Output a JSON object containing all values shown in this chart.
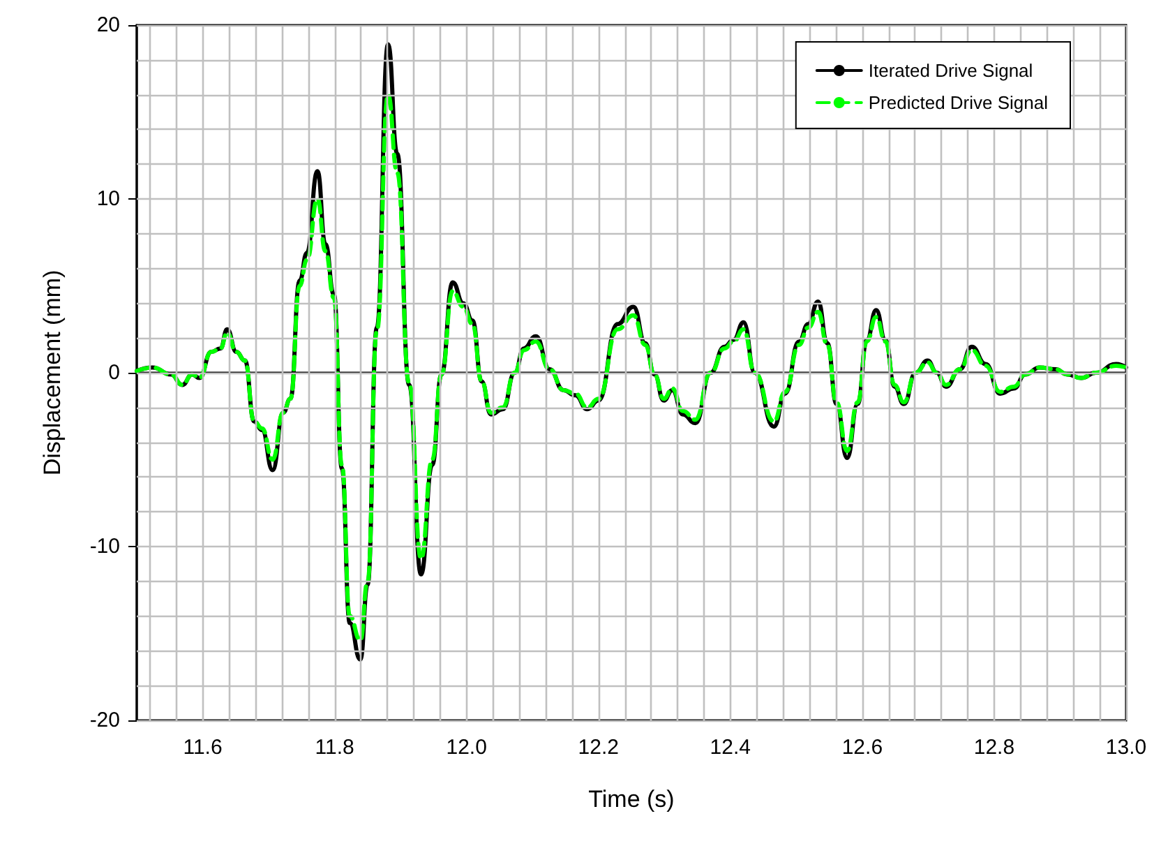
{
  "chart_data": {
    "type": "line",
    "xlabel": "Time (s)",
    "ylabel": "Displacement (mm)",
    "xlim": [
      11.5,
      13.0
    ],
    "ylim": [
      -20,
      20
    ],
    "xticks": [
      {
        "value": 11.52,
        "label": null
      },
      {
        "value": 11.56,
        "label": null
      },
      {
        "value": 11.6,
        "label": "11.6"
      },
      {
        "value": 11.64,
        "label": null
      },
      {
        "value": 11.68,
        "label": null
      },
      {
        "value": 11.72,
        "label": null
      },
      {
        "value": 11.76,
        "label": null
      },
      {
        "value": 11.8,
        "label": "11.8"
      },
      {
        "value": 11.84,
        "label": null
      },
      {
        "value": 11.88,
        "label": null
      },
      {
        "value": 11.92,
        "label": null
      },
      {
        "value": 11.96,
        "label": null
      },
      {
        "value": 12.0,
        "label": "12.0"
      },
      {
        "value": 12.04,
        "label": null
      },
      {
        "value": 12.08,
        "label": null
      },
      {
        "value": 12.12,
        "label": null
      },
      {
        "value": 12.16,
        "label": null
      },
      {
        "value": 12.2,
        "label": "12.2"
      },
      {
        "value": 12.24,
        "label": null
      },
      {
        "value": 12.28,
        "label": null
      },
      {
        "value": 12.32,
        "label": null
      },
      {
        "value": 12.36,
        "label": null
      },
      {
        "value": 12.4,
        "label": "12.4"
      },
      {
        "value": 12.44,
        "label": null
      },
      {
        "value": 12.48,
        "label": null
      },
      {
        "value": 12.52,
        "label": null
      },
      {
        "value": 12.56,
        "label": null
      },
      {
        "value": 12.6,
        "label": "12.6"
      },
      {
        "value": 12.64,
        "label": null
      },
      {
        "value": 12.68,
        "label": null
      },
      {
        "value": 12.72,
        "label": null
      },
      {
        "value": 12.76,
        "label": null
      },
      {
        "value": 12.8,
        "label": "12.8"
      },
      {
        "value": 12.84,
        "label": null
      },
      {
        "value": 12.88,
        "label": null
      },
      {
        "value": 12.92,
        "label": null
      },
      {
        "value": 12.96,
        "label": null
      },
      {
        "value": 13.0,
        "label": "13.0"
      }
    ],
    "yticks": [
      -20,
      {
        "value": -18,
        "label": null
      },
      {
        "value": -16,
        "label": null
      },
      {
        "value": -14,
        "label": null
      },
      {
        "value": -12,
        "label": null
      },
      -10,
      {
        "value": -8,
        "label": null
      },
      {
        "value": -6,
        "label": null
      },
      {
        "value": -4,
        "label": null
      },
      {
        "value": -2,
        "label": null
      },
      0,
      {
        "value": 2,
        "label": null
      },
      {
        "value": 4,
        "label": null
      },
      {
        "value": 6,
        "label": null
      },
      {
        "value": 8,
        "label": null
      },
      10,
      {
        "value": 12,
        "label": null
      },
      {
        "value": 14,
        "label": null
      },
      {
        "value": 16,
        "label": null
      },
      {
        "value": 18,
        "label": null
      },
      20
    ],
    "grid": true,
    "legend": "top right",
    "x": [
      11.5,
      11.524,
      11.552,
      11.569,
      11.584,
      11.595,
      11.613,
      11.627,
      11.637,
      11.651,
      11.664,
      11.678,
      11.69,
      11.706,
      11.722,
      11.733,
      11.747,
      11.758,
      11.774,
      11.786,
      11.799,
      11.811,
      11.823,
      11.839,
      11.85,
      11.864,
      11.881,
      11.895,
      11.913,
      11.931,
      11.948,
      11.962,
      11.979,
      11.995,
      12.009,
      12.023,
      12.037,
      12.055,
      12.073,
      12.087,
      12.105,
      12.126,
      12.147,
      12.165,
      12.183,
      12.2,
      12.229,
      12.253,
      12.271,
      12.285,
      12.299,
      12.312,
      12.328,
      12.347,
      12.37,
      12.391,
      12.405,
      12.42,
      12.437,
      12.466,
      12.483,
      12.504,
      12.518,
      12.533,
      12.547,
      12.561,
      12.577,
      12.593,
      12.607,
      12.621,
      12.635,
      12.649,
      12.663,
      12.681,
      12.699,
      12.713,
      12.727,
      12.748,
      12.766,
      12.787,
      12.809,
      12.83,
      12.847,
      12.869,
      12.893,
      12.911,
      12.932,
      12.954,
      12.985,
      13.0
    ],
    "series": [
      {
        "name": "Iterated Drive Signal",
        "color": "#000000",
        "line_style": "solid",
        "values": [
          0.1,
          0.3,
          -0.1,
          -0.7,
          -0.1,
          -0.3,
          1.2,
          1.4,
          2.5,
          1.2,
          0.7,
          -2.8,
          -3.3,
          -5.6,
          -2.3,
          -1.5,
          5.3,
          6.9,
          11.6,
          7.4,
          4.5,
          -5.5,
          -14.4,
          -16.5,
          -12.2,
          2.6,
          18.9,
          12.6,
          -0.7,
          -11.6,
          -5.3,
          -0.1,
          5.2,
          4.0,
          3.0,
          -0.5,
          -2.4,
          -2.1,
          0.0,
          1.4,
          2.1,
          0.2,
          -1.0,
          -1.3,
          -2.1,
          -1.6,
          2.8,
          3.8,
          1.7,
          -0.1,
          -1.6,
          -1.0,
          -2.4,
          -2.9,
          0.0,
          1.5,
          1.9,
          2.9,
          0.0,
          -3.1,
          -1.2,
          1.8,
          2.8,
          4.1,
          1.7,
          -1.8,
          -4.9,
          -1.8,
          1.9,
          3.6,
          1.9,
          -0.8,
          -1.8,
          0.0,
          0.7,
          0.0,
          -0.8,
          0.2,
          1.5,
          0.5,
          -1.2,
          -0.9,
          -0.1,
          0.3,
          0.2,
          -0.1,
          -0.3,
          0.0,
          0.5,
          0.3
        ]
      },
      {
        "name": "Predicted Drive Signal",
        "color": "#00ff00",
        "line_style": "dashed",
        "values": [
          0.1,
          0.3,
          -0.1,
          -0.7,
          -0.1,
          -0.3,
          1.2,
          1.4,
          2.3,
          1.2,
          0.7,
          -2.8,
          -3.2,
          -5.0,
          -2.3,
          -1.5,
          5.0,
          6.5,
          10.0,
          7.0,
          4.3,
          -5.3,
          -14.0,
          -15.4,
          -12.0,
          2.4,
          16.0,
          11.5,
          -0.6,
          -10.7,
          -5.0,
          -0.1,
          4.7,
          3.8,
          2.8,
          -0.5,
          -2.3,
          -2.0,
          0.0,
          1.3,
          1.8,
          0.2,
          -1.0,
          -1.2,
          -2.0,
          -1.5,
          2.5,
          3.3,
          1.6,
          -0.1,
          -1.5,
          -0.9,
          -2.2,
          -2.7,
          0.0,
          1.4,
          1.8,
          2.5,
          0.0,
          -2.8,
          -1.1,
          1.6,
          2.6,
          3.5,
          1.6,
          -1.7,
          -4.5,
          -1.7,
          1.8,
          3.2,
          1.8,
          -0.7,
          -1.7,
          0.0,
          0.6,
          0.0,
          -0.7,
          0.2,
          1.3,
          0.4,
          -1.1,
          -0.8,
          -0.1,
          0.3,
          0.2,
          -0.1,
          -0.3,
          0.0,
          0.4,
          0.3
        ]
      }
    ]
  }
}
